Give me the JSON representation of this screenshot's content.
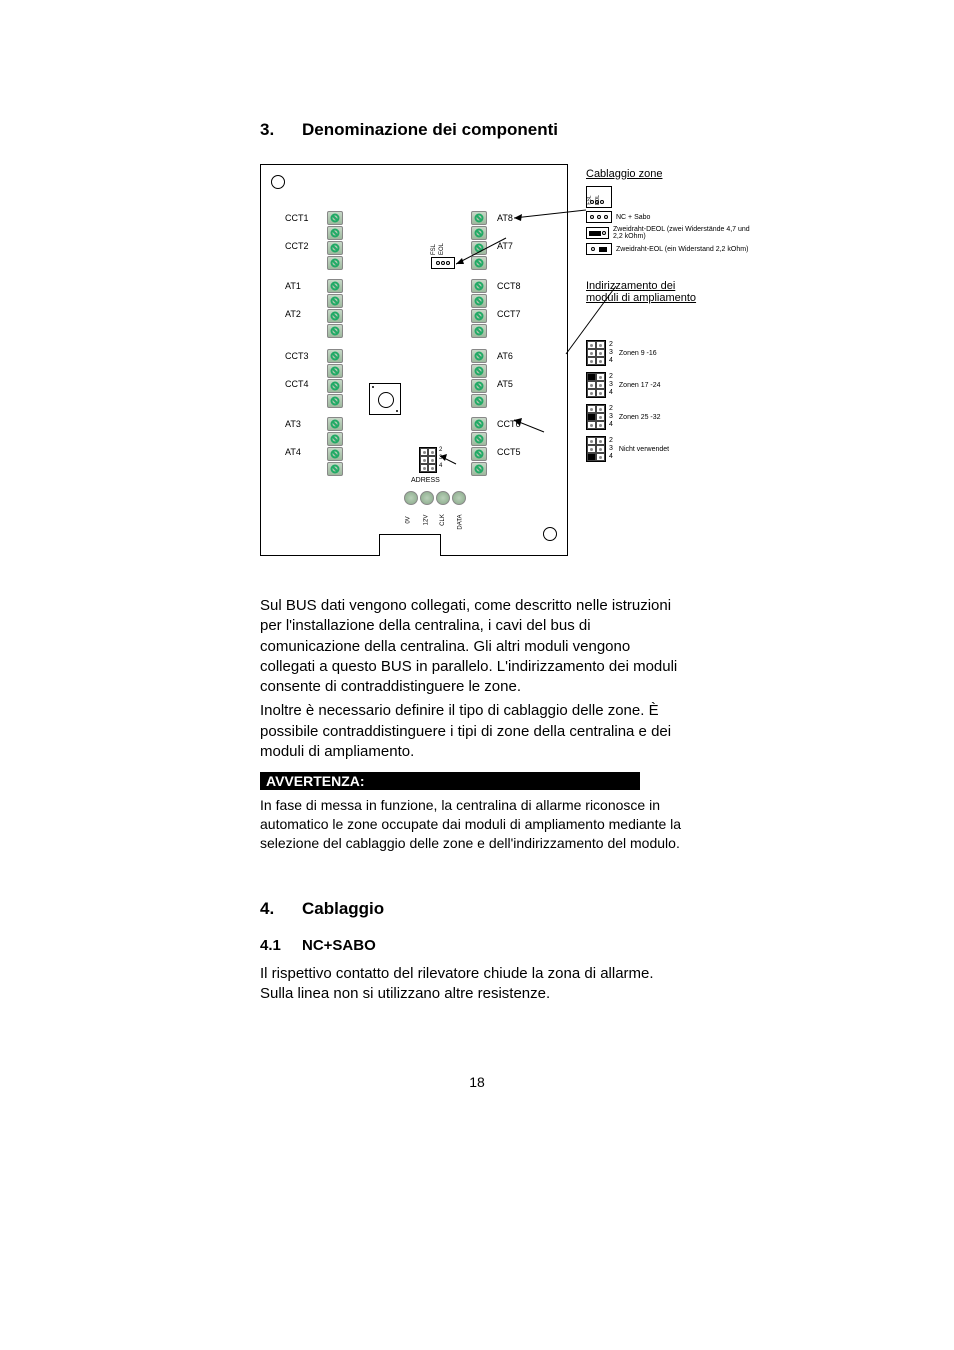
{
  "sections": {
    "s3": {
      "num": "3.",
      "title": "Denominazione dei componenti"
    },
    "s4": {
      "num": "4.",
      "title": "Cablaggio"
    },
    "s41": {
      "num": "4.1",
      "title": "NC+SABO"
    }
  },
  "diagram": {
    "left_terms": [
      "CCT1",
      "CCT2",
      "AT1",
      "AT2",
      "CCT3",
      "CCT4",
      "AT3",
      "AT4"
    ],
    "right_terms": [
      "AT8",
      "AT7",
      "CCT8",
      "CCT7",
      "AT6",
      "AT5",
      "CCT6",
      "CCT5"
    ],
    "jumper_top": [
      "FSL",
      "EOL"
    ],
    "adress_label": "ADRESS",
    "adress_nums": [
      "2",
      "3",
      "4"
    ],
    "bus_labels": [
      "0V",
      "12V",
      "CLK",
      "DATA"
    ],
    "zone_title": "Cablaggio zone",
    "wiring_opts": [
      {
        "sym": "dots",
        "txt": "NC + Sabo"
      },
      {
        "sym": "res2",
        "txt": "Zweidraht-DEOL (zwei Widerstände 4,7 und 2,2 kOhm)"
      },
      {
        "sym": "res1",
        "txt": "Zweidraht-EOL (ein Widerstand 2,2 kOhm)"
      }
    ],
    "addr_title_l1": "Indirizzamento dei",
    "addr_title_l2": "moduli di ampliamento",
    "addr_opts": [
      {
        "on": [
          false,
          false,
          false
        ],
        "txt": "Zonen 9 -16"
      },
      {
        "on": [
          true,
          false,
          false
        ],
        "txt": "Zonen 17 -24"
      },
      {
        "on": [
          false,
          true,
          false
        ],
        "txt": "Zonen 25 -32"
      },
      {
        "on": [
          false,
          false,
          true
        ],
        "txt": "Nicht verwendet"
      }
    ]
  },
  "body": {
    "p1": "Sul BUS dati vengono collegati, come descritto nelle istruzioni per l'installazione della centralina, i cavi del bus di comunicazione della centralina. Gli altri moduli vengono collegati a questo BUS in parallelo. L'indirizzamento dei moduli consente di contraddistinguere le zone.",
    "p2": "Inoltre è necessario definire il tipo di cablaggio delle zone. È possibile contraddistinguere i tipi di zone della centralina e dei moduli di ampliamento.",
    "notice_label": "AVVERTENZA:",
    "notice": "In fase di messa in funzione, la centralina di allarme riconosce in automatico le zone occupate dai moduli di ampliamento mediante la selezione del cablaggio delle zone e dell'indirizzamento del modulo.",
    "p41": "Il rispettivo contatto del rilevatore chiude la zona di allarme. Sulla linea non si utilizzano altre resistenze."
  },
  "page_number": "18",
  "colors": {
    "text": "#000000",
    "bg": "#ffffff",
    "term_fill": "#9db89d"
  }
}
